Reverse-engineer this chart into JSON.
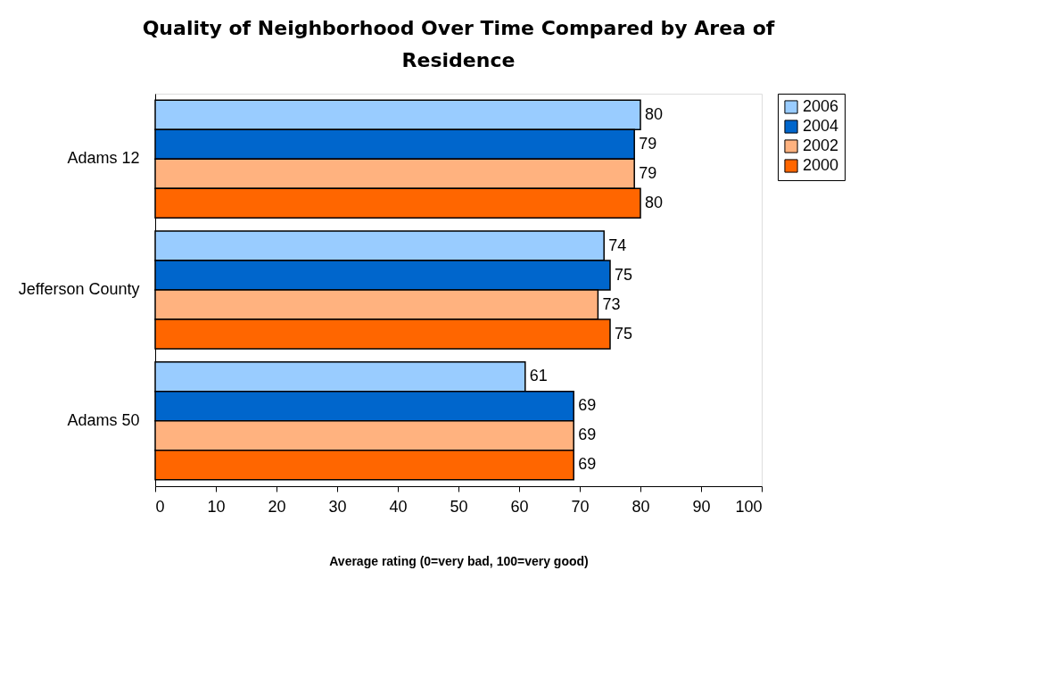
{
  "chart_data": {
    "type": "bar",
    "orientation": "horizontal",
    "title": "Quality of Neighborhood Over Time Compared by Area of Residence",
    "xlabel": "Average rating (0=very bad, 100=very good)",
    "categories": [
      "Adams 12",
      "Jefferson County",
      "Adams 50"
    ],
    "series": [
      {
        "name": "2006",
        "color": "#99ccff",
        "values": [
          80,
          74,
          61
        ]
      },
      {
        "name": "2004",
        "color": "#0066cc",
        "values": [
          79,
          75,
          69
        ]
      },
      {
        "name": "2002",
        "color": "#ffb27f",
        "values": [
          79,
          73,
          69
        ]
      },
      {
        "name": "2000",
        "color": "#ff6600",
        "values": [
          80,
          75,
          69
        ]
      }
    ],
    "xlim": [
      0,
      100
    ],
    "xticks": [
      0,
      10,
      20,
      30,
      40,
      50,
      60,
      70,
      80,
      90,
      100
    ],
    "grid": false,
    "legend": "right",
    "data_labels": true
  }
}
